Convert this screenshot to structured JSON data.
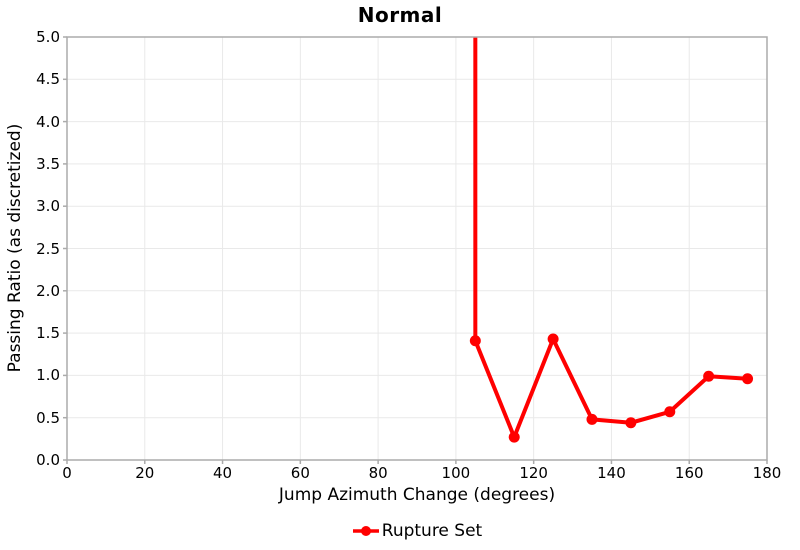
{
  "chart_data": {
    "type": "line",
    "title": "Normal",
    "xlabel": "Jump Azimuth Change (degrees)",
    "ylabel": "Passing Ratio (as discretized)",
    "xlim": [
      0,
      180
    ],
    "ylim": [
      0,
      5
    ],
    "grid": true,
    "legend_position": "bottom-center",
    "xticks": [
      0,
      20,
      40,
      60,
      80,
      100,
      120,
      140,
      160,
      180
    ],
    "xtick_labels": [
      "0",
      "20",
      "40",
      "60",
      "80",
      "100",
      "120",
      "140",
      "160",
      "180"
    ],
    "yticks": [
      0,
      0.5,
      1,
      1.5,
      2,
      2.5,
      3,
      3.5,
      4,
      4.5,
      5
    ],
    "ytick_labels": [
      "0.0",
      "0.5",
      "1.0",
      "1.5",
      "2.0",
      "2.5",
      "3.0",
      "3.5",
      "4.0",
      "4.5",
      "5.0"
    ],
    "series": [
      {
        "name": "Rupture Set",
        "color": "#ff0000",
        "x": [
          105,
          115,
          125,
          135,
          145,
          155,
          165,
          175
        ],
        "y": [
          1.41,
          0.27,
          1.43,
          0.48,
          0.44,
          0.57,
          0.99,
          0.96
        ],
        "enters_from_above_ymax_at_x": 105
      }
    ],
    "colors": {
      "plot_border": "#ababab",
      "gridline": "#e9e9e9",
      "tick_mark": "#ababab",
      "text": "#000000",
      "background": "#ffffff"
    }
  }
}
